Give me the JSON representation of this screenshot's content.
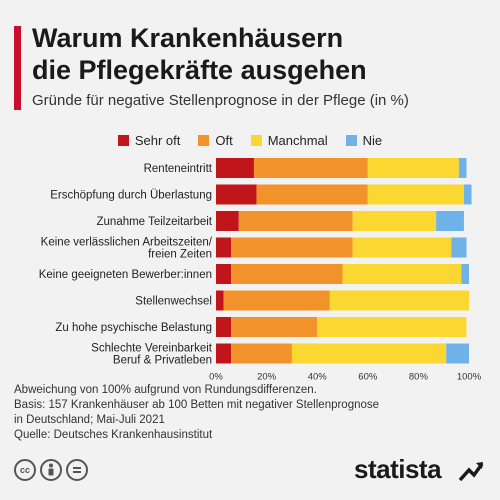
{
  "header": {
    "title_line1": "Warum Krankenhäusern",
    "title_line2": "die Pflegekräfte ausgehen",
    "subtitle": "Gründe für negative Stellenprognose in der Pflege (in %)"
  },
  "legend": [
    {
      "label": "Sehr oft",
      "color": "#c0151b"
    },
    {
      "label": "Oft",
      "color": "#f2922b"
    },
    {
      "label": "Manchmal",
      "color": "#fbd731"
    },
    {
      "label": "Nie",
      "color": "#6fb2e8"
    }
  ],
  "chart_data": {
    "type": "bar",
    "orientation": "horizontal",
    "stacked": true,
    "categories": [
      [
        "Renteneintritt"
      ],
      [
        "Erschöpfung durch Überlastung"
      ],
      [
        "Zunahme Teilzeitarbeit"
      ],
      [
        "Keine verlässlichen Arbeitszeiten/",
        "freien Zeiten"
      ],
      [
        "Keine geeigneten Bewerber:innen"
      ],
      [
        "Stellenwechsel"
      ],
      [
        "Zu hohe psychische Belastung"
      ],
      [
        "Schlechte Vereinbarkeit",
        "Beruf & Privatleben"
      ]
    ],
    "series": [
      {
        "name": "Sehr oft",
        "color": "#c0151b",
        "values": [
          15,
          16,
          9,
          6,
          6,
          3,
          6,
          6
        ]
      },
      {
        "name": "Oft",
        "color": "#f2922b",
        "values": [
          45,
          44,
          45,
          48,
          44,
          42,
          34,
          24
        ]
      },
      {
        "name": "Manchmal",
        "color": "#fbd731",
        "values": [
          36,
          38,
          33,
          39,
          47,
          55,
          59,
          61
        ]
      },
      {
        "name": "Nie",
        "color": "#6fb2e8",
        "values": [
          3,
          3,
          11,
          6,
          3,
          0,
          0,
          9
        ]
      }
    ],
    "xlim": [
      0,
      100
    ],
    "xticks": [
      "0%",
      "20%",
      "40%",
      "60%",
      "80%",
      "100%"
    ],
    "xlabel": "",
    "ylabel": "",
    "grid": false,
    "legend_position": "top"
  },
  "footnote": {
    "line1": "Abweichung von 100% aufgrund von Rundungsdifferenzen.",
    "line2": "Basis: 157 Krankenhäuser ab 100 Betten mit negativer Stellenprognose",
    "line3": "in Deutschland; Mai-Juli 2021",
    "line4": "Quelle: Deutsches Krankenhausinstitut"
  },
  "license_icons": [
    "cc-icon",
    "person-icon",
    "equals-icon"
  ],
  "brand": {
    "logo_text": "statista"
  }
}
